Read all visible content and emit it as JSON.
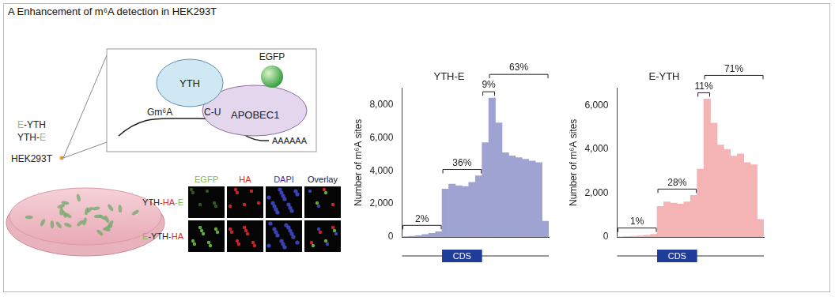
{
  "title": "A Enhancement of m⁶A detection in HEK293T",
  "diagram": {
    "constructs": [
      [
        {
          "text": "E",
          "color": "#8cc63f"
        },
        {
          "text": "-YTH",
          "color": "#222222"
        }
      ],
      [
        {
          "text": "YTH-",
          "color": "#222222"
        },
        {
          "text": "E",
          "color": "#8cc63f"
        }
      ]
    ],
    "cell_line": "HEK293T",
    "proteins": [
      "YTH",
      "APOBEC1",
      "EGFP"
    ],
    "rna": {
      "site": "Gm⁶A",
      "edit": "C-U",
      "tail": "AAAAAA"
    }
  },
  "microscopy": {
    "columns": [
      {
        "text": "EGFP",
        "color": "#7dc242"
      },
      {
        "text": "HA",
        "color": "#e0282e"
      },
      {
        "text": "DAPI",
        "color": "#3a3aa0"
      },
      {
        "text": "Overlay",
        "color": "#222222"
      }
    ],
    "rows": [
      [
        {
          "text": "YTH-",
          "color": "#222222"
        },
        {
          "text": "HA",
          "color": "#e0282e"
        },
        {
          "text": "-E",
          "color": "#7dc242"
        }
      ],
      [
        {
          "text": "E",
          "color": "#7dc242"
        },
        {
          "text": "-YTH-",
          "color": "#222222"
        },
        {
          "text": "HA",
          "color": "#e0282e"
        }
      ]
    ]
  },
  "chart_data": [
    {
      "type": "bar",
      "title": "YTH-E",
      "y_label": "Number of m⁶A sites",
      "categories": [
        null,
        null,
        null,
        null,
        null,
        null,
        null,
        null,
        null,
        null,
        null,
        null,
        null,
        null,
        null,
        null,
        null,
        null,
        null,
        null,
        null,
        null
      ],
      "values": [
        20,
        40,
        80,
        150,
        220,
        320,
        2900,
        3200,
        3100,
        3050,
        3300,
        3700,
        5700,
        8400,
        6900,
        5100,
        4900,
        4800,
        4700,
        4600,
        4500,
        950
      ],
      "color": "#9fa3d1",
      "ylim": [
        0,
        9000
      ],
      "yticks": [
        0,
        {
          "value": 2000,
          "label": "2,000"
        },
        {
          "value": 4000,
          "label": "4,000"
        },
        {
          "value": 6000,
          "label": "6,000"
        },
        {
          "value": 8000,
          "label": "8,000"
        }
      ],
      "grid": false,
      "tick_labels": "y",
      "annotations": [
        {
          "label": "2%",
          "value": 2,
          "bins": [
            0,
            5
          ]
        },
        {
          "label": "36%",
          "value": 36,
          "bins": [
            6,
            11
          ]
        },
        {
          "label": "9%",
          "value": 9,
          "bins": [
            12,
            13
          ]
        },
        {
          "label": "63%",
          "value": 63,
          "bins": [
            13,
            21
          ]
        }
      ],
      "cds": {
        "label": "CDS",
        "bins": [
          6,
          11
        ]
      }
    },
    {
      "type": "bar",
      "title": "E-YTH",
      "y_label": "Number of m⁶A sites",
      "categories": [
        null,
        null,
        null,
        null,
        null,
        null,
        null,
        null,
        null,
        null,
        null,
        null,
        null,
        null,
        null,
        null,
        null,
        null,
        null,
        null,
        null,
        null
      ],
      "values": [
        10,
        20,
        30,
        50,
        80,
        120,
        1400,
        1600,
        1550,
        1500,
        1600,
        1900,
        3100,
        6300,
        5200,
        4200,
        4000,
        3700,
        3800,
        3400,
        3300,
        800
      ],
      "color": "#f4b3b5",
      "ylim": [
        0,
        6800
      ],
      "yticks": [
        0,
        {
          "value": 2000,
          "label": "2,000"
        },
        {
          "value": 4000,
          "label": "4,000"
        },
        {
          "value": 6000,
          "label": "6,000"
        }
      ],
      "grid": false,
      "tick_labels": "y",
      "annotations": [
        {
          "label": "1%",
          "value": 1,
          "bins": [
            0,
            5
          ]
        },
        {
          "label": "28%",
          "value": 28,
          "bins": [
            6,
            11
          ]
        },
        {
          "label": "11%",
          "value": 11,
          "bins": [
            12,
            13
          ]
        },
        {
          "label": "71%",
          "value": 71,
          "bins": [
            13,
            21
          ]
        }
      ],
      "cds": {
        "label": "CDS",
        "bins": [
          6,
          11
        ]
      }
    }
  ]
}
